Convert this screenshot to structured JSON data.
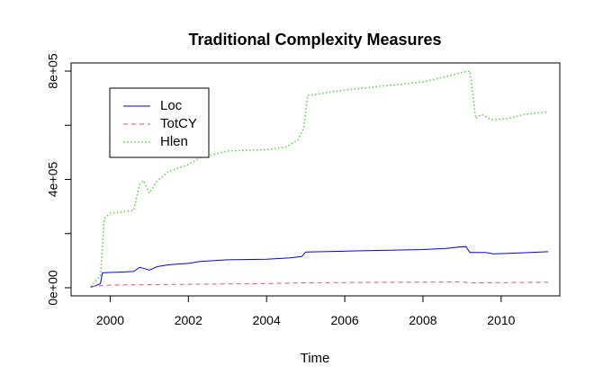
{
  "chart_data": {
    "type": "line",
    "title": "Traditional Complexity Measures",
    "xlabel": "Time",
    "ylabel": "",
    "xlim": [
      1999,
      2011.5
    ],
    "ylim": [
      -30000,
      830000
    ],
    "x_ticks": [
      2000,
      2002,
      2004,
      2006,
      2008,
      2010
    ],
    "x_tick_labels": [
      "2000",
      "2002",
      "2004",
      "2006",
      "2008",
      "2010"
    ],
    "y_ticks": [
      0,
      200000,
      400000,
      600000,
      800000
    ],
    "y_tick_labels": [
      "0e+00",
      "",
      "4e+05",
      "",
      "8e+05"
    ],
    "legend_position": "top-left",
    "grid": false,
    "series": [
      {
        "name": "Loc",
        "color": "#0000ff",
        "dash": "solid",
        "points": [
          [
            1999.5,
            2000
          ],
          [
            1999.6,
            6000
          ],
          [
            1999.75,
            15000
          ],
          [
            1999.8,
            55000
          ],
          [
            2000.3,
            58000
          ],
          [
            2000.6,
            60000
          ],
          [
            2000.75,
            75000
          ],
          [
            2000.85,
            72000
          ],
          [
            2001.0,
            65000
          ],
          [
            2001.2,
            78000
          ],
          [
            2001.5,
            85000
          ],
          [
            2002.0,
            90000
          ],
          [
            2002.3,
            97000
          ],
          [
            2003.0,
            103000
          ],
          [
            2004.0,
            105000
          ],
          [
            2004.6,
            110000
          ],
          [
            2004.9,
            115000
          ],
          [
            2005.0,
            132000
          ],
          [
            2006.0,
            135000
          ],
          [
            2007.0,
            138000
          ],
          [
            2008.0,
            141000
          ],
          [
            2008.6,
            145000
          ],
          [
            2008.9,
            150000
          ],
          [
            2009.1,
            152000
          ],
          [
            2009.2,
            130000
          ],
          [
            2009.6,
            130000
          ],
          [
            2009.8,
            125000
          ],
          [
            2010.2,
            127000
          ],
          [
            2011.2,
            133000
          ]
        ]
      },
      {
        "name": "TotCY",
        "color": "#df536b",
        "dash": "dashed",
        "points": [
          [
            1999.5,
            5000
          ],
          [
            2000.0,
            10000
          ],
          [
            2002.0,
            13000
          ],
          [
            2004.0,
            15000
          ],
          [
            2005.0,
            18000
          ],
          [
            2007.0,
            20000
          ],
          [
            2009.0,
            21000
          ],
          [
            2009.2,
            18000
          ],
          [
            2011.2,
            20000
          ]
        ]
      },
      {
        "name": "Hlen",
        "color": "#61d04f",
        "dash": "dotted",
        "points": [
          [
            1999.5,
            5000
          ],
          [
            1999.6,
            20000
          ],
          [
            1999.75,
            45000
          ],
          [
            1999.85,
            255000
          ],
          [
            2000.0,
            275000
          ],
          [
            2000.3,
            280000
          ],
          [
            2000.6,
            285000
          ],
          [
            2000.75,
            380000
          ],
          [
            2000.85,
            395000
          ],
          [
            2001.0,
            350000
          ],
          [
            2001.2,
            395000
          ],
          [
            2001.5,
            430000
          ],
          [
            2002.0,
            455000
          ],
          [
            2002.3,
            480000
          ],
          [
            2003.0,
            505000
          ],
          [
            2004.0,
            510000
          ],
          [
            2004.5,
            520000
          ],
          [
            2004.8,
            545000
          ],
          [
            2004.95,
            590000
          ],
          [
            2005.05,
            710000
          ],
          [
            2006.0,
            730000
          ],
          [
            2007.0,
            745000
          ],
          [
            2008.0,
            760000
          ],
          [
            2008.6,
            780000
          ],
          [
            2009.0,
            795000
          ],
          [
            2009.2,
            800000
          ],
          [
            2009.35,
            625000
          ],
          [
            2009.5,
            640000
          ],
          [
            2009.75,
            620000
          ],
          [
            2010.2,
            625000
          ],
          [
            2010.6,
            640000
          ],
          [
            2011.2,
            650000
          ]
        ]
      }
    ]
  }
}
